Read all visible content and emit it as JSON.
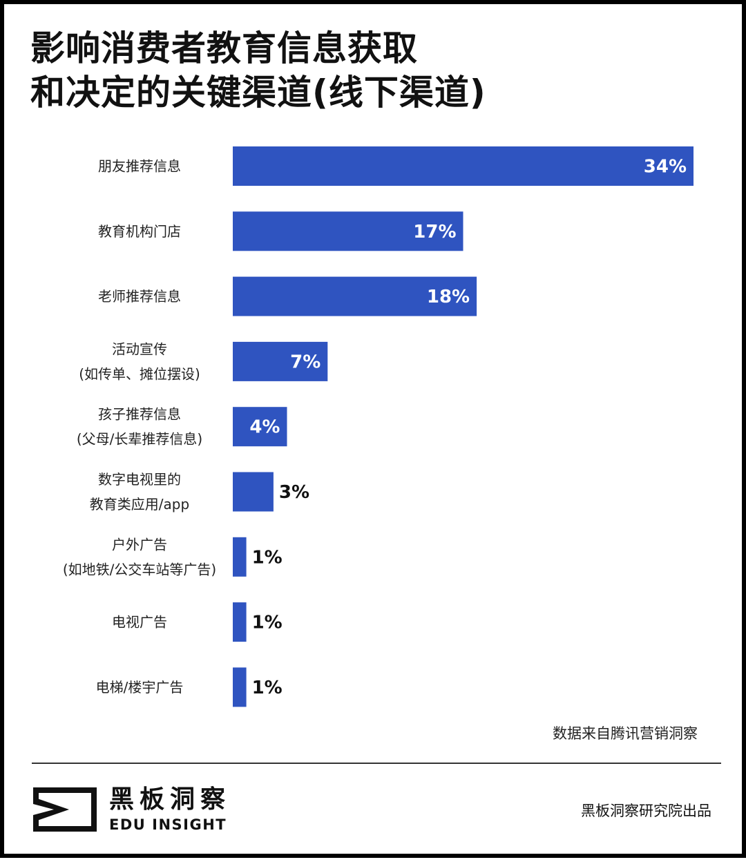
{
  "title": {
    "line1": "影响消费者教育信息获取",
    "line2": "和决定的关键渠道(线下渠道)"
  },
  "chart_data": {
    "type": "bar",
    "orientation": "horizontal",
    "categories": [
      [
        "朋友推荐信息"
      ],
      [
        "教育机构门店"
      ],
      [
        "老师推荐信息"
      ],
      [
        "活动宣传",
        "(如传单、摊位摆设)"
      ],
      [
        "孩子推荐信息",
        "(父母/长辈推荐信息)"
      ],
      [
        "数字电视里的",
        "教育类应用/app"
      ],
      [
        "户外广告",
        "(如地铁/公交车站等广告)"
      ],
      [
        "电视广告"
      ],
      [
        "电梯/楼宇广告"
      ]
    ],
    "values": [
      34,
      17,
      18,
      7,
      4,
      3,
      1,
      1,
      1
    ],
    "labels": [
      "34%",
      "17%",
      "18%",
      "7%",
      "4%",
      "3%",
      "1%",
      "1%",
      "1%"
    ],
    "unit": "%",
    "xlim": [
      0,
      34
    ],
    "bar_color": "#2f54c0",
    "grid": false,
    "legend": "none"
  },
  "source": "数据来自腾讯营销洞察",
  "footer": {
    "logo_cn": "黑板洞察",
    "logo_en": "EDU INSIGHT",
    "credit": "黑板洞察研究院出品"
  }
}
